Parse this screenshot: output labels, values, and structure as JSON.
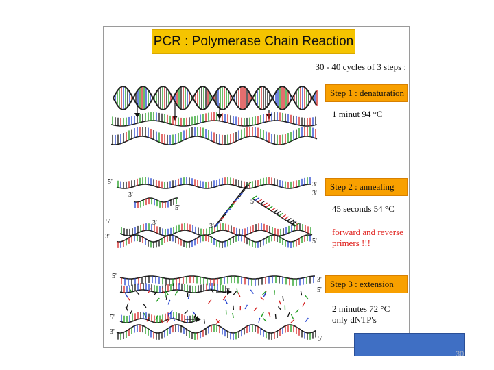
{
  "title": "PCR : Polymerase Chain Reaction",
  "cycles_note": "30 - 40 cycles of 3 steps :",
  "steps": [
    {
      "label": "Step 1 : denaturation",
      "notes": [
        "1 minut 94 °C"
      ]
    },
    {
      "label": "Step 2 : annealing",
      "notes": [
        "45 seconds 54 °C"
      ],
      "highlight": "forward and reverse primers !!!"
    },
    {
      "label": "Step 3 : extension",
      "notes": [
        "2 minutes 72 °C",
        "only dNTP's"
      ]
    }
  ],
  "strand_ends": {
    "five": "5'",
    "three": "3'"
  },
  "page_number": "30",
  "colors": {
    "title_bg": "#f5c400",
    "step_bg": "#f8a000",
    "highlight_text": "#e0201c",
    "corner_box": "#3f6fc4",
    "base_colors": [
      "#1a9a1a",
      "#d42020",
      "#2040d0",
      "#111111"
    ]
  }
}
